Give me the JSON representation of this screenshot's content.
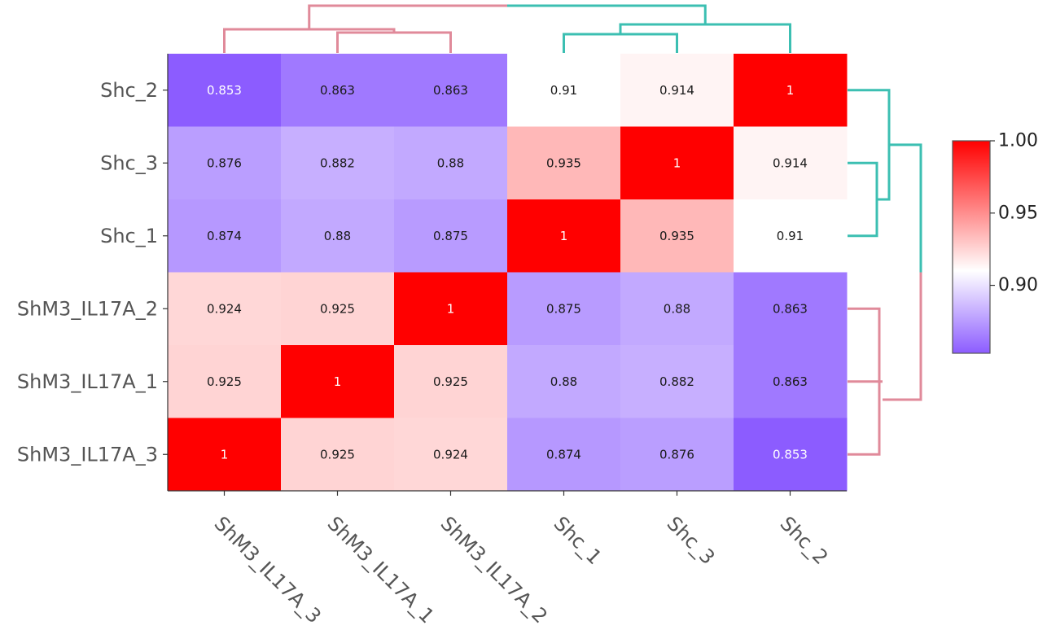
{
  "chart_data": {
    "type": "heatmap",
    "title": "",
    "xlabel": "",
    "ylabel": "",
    "rows": [
      "Shc_2",
      "Shc_3",
      "Shc_1",
      "ShM3_IL17A_2",
      "ShM3_IL17A_1",
      "ShM3_IL17A_3"
    ],
    "columns": [
      "ShM3_IL17A_3",
      "ShM3_IL17A_1",
      "ShM3_IL17A_2",
      "Shc_1",
      "Shc_3",
      "Shc_2"
    ],
    "values": [
      [
        0.853,
        0.863,
        0.863,
        0.91,
        0.914,
        1
      ],
      [
        0.876,
        0.882,
        0.88,
        0.935,
        1,
        0.914
      ],
      [
        0.874,
        0.88,
        0.875,
        1,
        0.935,
        0.91
      ],
      [
        0.924,
        0.925,
        1,
        0.875,
        0.88,
        0.863
      ],
      [
        0.925,
        1,
        0.925,
        0.88,
        0.882,
        0.863
      ],
      [
        1,
        0.925,
        0.924,
        0.874,
        0.876,
        0.853
      ]
    ],
    "cell_labels": [
      [
        "0.853",
        "0.863",
        "0.863",
        "0.91",
        "0.914",
        "1"
      ],
      [
        "0.876",
        "0.882",
        "0.88",
        "0.935",
        "1",
        "0.914"
      ],
      [
        "0.874",
        "0.88",
        "0.875",
        "1",
        "0.935",
        "0.91"
      ],
      [
        "0.924",
        "0.925",
        "1",
        "0.875",
        "0.88",
        "0.863"
      ],
      [
        "0.925",
        "1",
        "0.925",
        "0.88",
        "0.882",
        "0.863"
      ],
      [
        "1",
        "0.925",
        "0.924",
        "0.874",
        "0.876",
        "0.853"
      ]
    ],
    "colorbar": {
      "min": 0.853,
      "max": 1.0,
      "center": 0.91,
      "ticks": [
        0.9,
        0.95,
        1.0
      ],
      "tick_labels": [
        "0.90",
        "0.95",
        "1.00"
      ],
      "colors": {
        "low": "#8c5cff",
        "mid": "#ffffff",
        "high": "#ff0000"
      }
    },
    "dendrogram": {
      "cluster_colors": {
        "ShM3_group": "#e08a9a",
        "Shc_group": "#3cbfb2"
      },
      "column_groups": [
        [
          "ShM3_IL17A_3",
          "ShM3_IL17A_1",
          "ShM3_IL17A_2"
        ],
        [
          "Shc_1",
          "Shc_3",
          "Shc_2"
        ]
      ],
      "row_groups": [
        [
          "Shc_2",
          "Shc_3",
          "Shc_1"
        ],
        [
          "ShM3_IL17A_2",
          "ShM3_IL17A_1",
          "ShM3_IL17A_3"
        ]
      ]
    },
    "legend": "right"
  }
}
